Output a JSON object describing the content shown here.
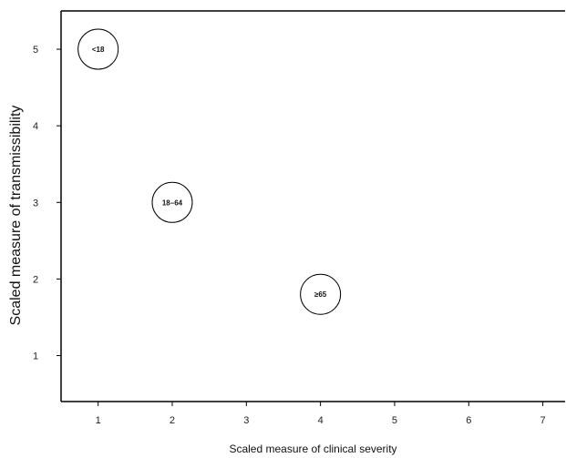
{
  "chart_data": {
    "type": "scatter",
    "title": "",
    "xlabel": "Scaled measure of clinical severity",
    "ylabel": "Scaled measure of transmissibility",
    "xlim": [
      0.5,
      7.3
    ],
    "ylim": [
      0.4,
      5.5
    ],
    "xticks": [
      1,
      2,
      3,
      4,
      5,
      6,
      7
    ],
    "yticks": [
      1,
      2,
      3,
      4,
      5
    ],
    "grid": false,
    "legend": "none",
    "points": [
      {
        "label": "<18",
        "x": 1,
        "y": 5
      },
      {
        "label": "18–64",
        "x": 2,
        "y": 3
      },
      {
        "label": "≥65",
        "x": 4,
        "y": 1.8
      }
    ],
    "colors": {
      "axis": "#000000",
      "marker_fill": "#ffffff",
      "marker_stroke": "#000000"
    }
  }
}
